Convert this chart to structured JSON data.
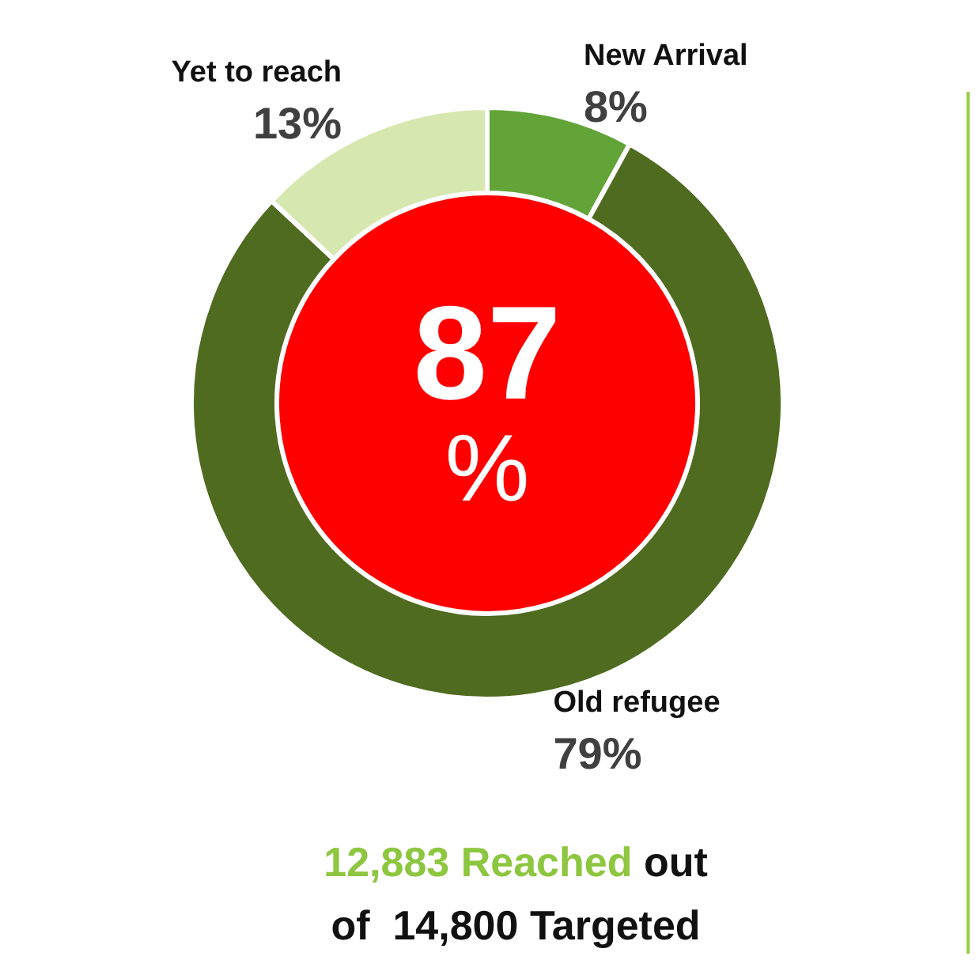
{
  "chart_data": {
    "type": "donut",
    "categories": [
      "New Arrival",
      "Old refugee",
      "Yet to reach"
    ],
    "values": [
      8,
      79,
      13
    ],
    "colors": [
      "#62a438",
      "#4e6b1f",
      "#d6e8b0"
    ],
    "value_labels": [
      "8%",
      "79%",
      "13%"
    ],
    "legend": false,
    "annotations": [
      "87\n%",
      "12,883 Reached out",
      "of  14,800 Targeted"
    ]
  }
}
